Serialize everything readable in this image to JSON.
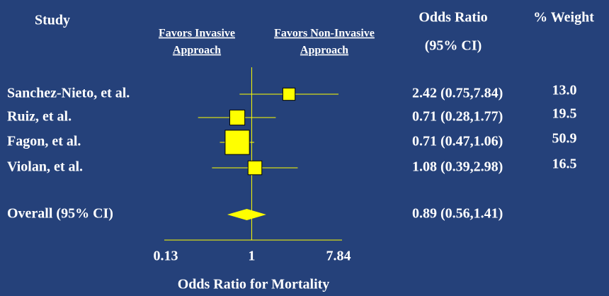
{
  "chart_data": {
    "type": "forest",
    "study_header": "Study",
    "favors_left": [
      "Favors Invasive",
      "Approach"
    ],
    "favors_right": [
      "Favors Non-Invasive",
      "Approach"
    ],
    "or_header": [
      "Odds Ratio",
      "(95% CI)"
    ],
    "weight_header": "% Weight",
    "xlabel": "Odds Ratio for Mortality",
    "categories": [
      "Sanchez-Nieto, et al.",
      "Ruiz, et al.",
      "Fagon, et al.",
      "Violan, et al."
    ],
    "values": [
      2.42,
      0.71,
      0.71,
      1.08
    ],
    "lower": [
      0.75,
      0.28,
      0.47,
      0.39
    ],
    "upper": [
      7.84,
      1.77,
      1.06,
      2.98
    ],
    "value_labels": [
      "2.42 (0.75,7.84)",
      "0.71 (0.28,1.77)",
      "0.71 (0.47,1.06)",
      "1.08 (0.39,2.98)"
    ],
    "weights": [
      13.0,
      19.5,
      50.9,
      16.5
    ],
    "weight_labels": [
      "13.0",
      "19.5",
      "50.9",
      "16.5"
    ],
    "overall": {
      "label": "Overall (95% CI)",
      "value": 0.89,
      "lower": 0.56,
      "upper": 1.41,
      "value_label": "0.89 (0.56,1.41)"
    },
    "xlim": [
      0.13,
      7.84
    ],
    "xticks": [
      0.13,
      1,
      7.84
    ],
    "log_x": true,
    "color": "#ffff00",
    "background": "#25417a"
  }
}
